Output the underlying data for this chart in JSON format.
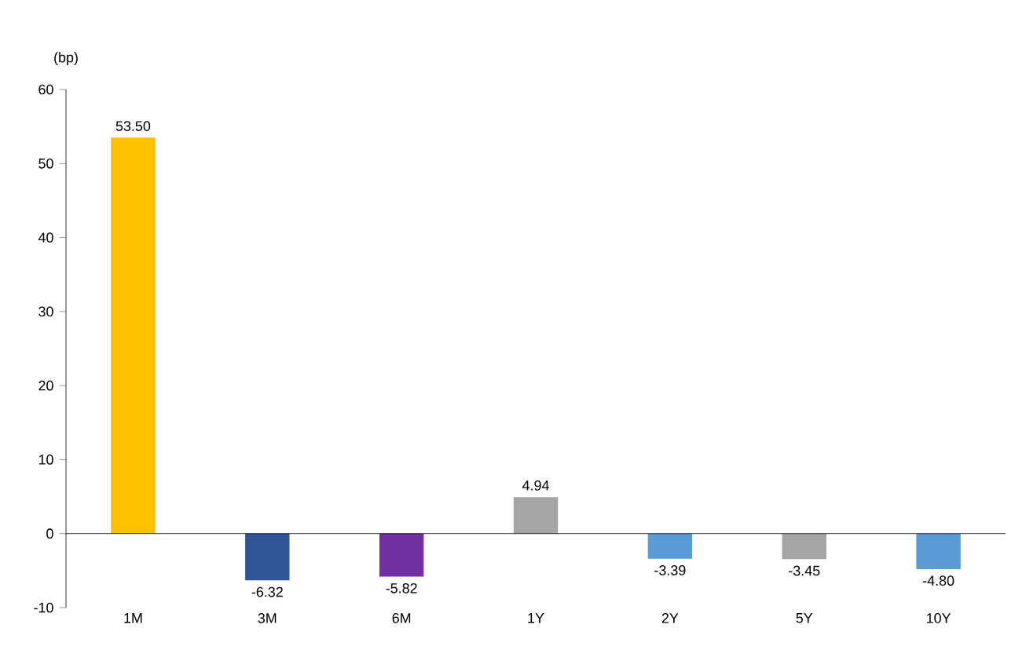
{
  "chart_data": {
    "type": "bar",
    "ylabel": "(bp)",
    "categories": [
      "1M",
      "3M",
      "6M",
      "1Y",
      "2Y",
      "5Y",
      "10Y"
    ],
    "values": [
      53.5,
      -6.32,
      -5.82,
      4.94,
      -3.39,
      -3.45,
      -4.8
    ],
    "value_labels": [
      "53.50",
      "-6.32",
      "-5.82",
      "4.94",
      "-3.39",
      "-3.45",
      "-4.80"
    ],
    "colors": [
      "#ffc000",
      "#2f5597",
      "#7030a0",
      "#a5a5a5",
      "#5b9bd5",
      "#a5a5a5",
      "#5b9bd5"
    ],
    "ylim": [
      -10,
      60
    ],
    "yticks": [
      -10,
      0,
      10,
      20,
      30,
      40,
      50,
      60
    ]
  }
}
